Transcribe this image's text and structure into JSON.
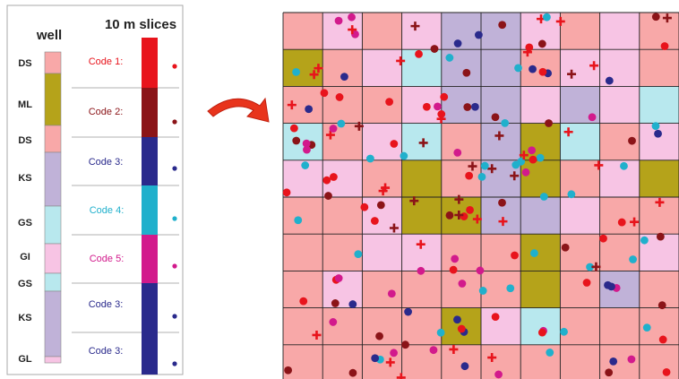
{
  "well_panel": {
    "well_title": "well",
    "slices_title": "10 m slices",
    "well_units": [
      {
        "label": "DS",
        "color": "#f8a8a8"
      },
      {
        "label": "ML",
        "color": "#b5a31a"
      },
      {
        "label": "DS",
        "color": "#f8a8a8"
      },
      {
        "label": "KS",
        "color": "#c0b2d8"
      },
      {
        "label": "GS",
        "color": "#b8e8ee"
      },
      {
        "label": "GI",
        "color": "#f7c4e4"
      },
      {
        "label": "GS",
        "color": "#b8e8ee"
      },
      {
        "label": "KS",
        "color": "#c0b2d8"
      },
      {
        "label": "GL",
        "color": "#f7c4e4"
      }
    ],
    "codes": [
      {
        "label": "Code 1:",
        "color": "#e8141c"
      },
      {
        "label": "Code 2:",
        "color": "#8b1418"
      },
      {
        "label": "Code 3:",
        "color": "#2a2a8c"
      },
      {
        "label": "Code 4:",
        "color": "#20b0cc"
      },
      {
        "label": "Code 5:",
        "color": "#d21a8c"
      },
      {
        "label": "Code 3:",
        "color": "#2a2a8c"
      },
      {
        "label": "Code 3:",
        "color": "#2a2a8c"
      }
    ]
  },
  "arrow": {
    "color": "#e8341c"
  },
  "map": {
    "cell_colors": {
      "DS": "#f8a8a8",
      "ML": "#b5a31a",
      "KS": "#c0b2d8",
      "GS": "#b8e8ee",
      "GI": "#f7c4e4"
    },
    "grid": [
      [
        "DS",
        "GI",
        "DS",
        "GI",
        "KS",
        "KS",
        "GI",
        "DS",
        "GI",
        "DS"
      ],
      [
        "ML",
        "DS",
        "GI",
        "GS",
        "KS",
        "KS",
        "DS",
        "GI",
        "GI",
        "DS"
      ],
      [
        "DS",
        "DS",
        "DS",
        "GI",
        "KS",
        "KS",
        "GI",
        "KS",
        "GI",
        "GS"
      ],
      [
        "GS",
        "DS",
        "GI",
        "GS",
        "DS",
        "KS",
        "ML",
        "GS",
        "DS",
        "GI"
      ],
      [
        "GI",
        "GI",
        "DS",
        "ML",
        "DS",
        "KS",
        "ML",
        "DS",
        "GI",
        "ML"
      ],
      [
        "DS",
        "DS",
        "GI",
        "ML",
        "ML",
        "KS",
        "KS",
        "GI",
        "DS",
        "DS"
      ],
      [
        "DS",
        "DS",
        "GI",
        "GI",
        "DS",
        "DS",
        "ML",
        "DS",
        "DS",
        "GI"
      ],
      [
        "DS",
        "GI",
        "DS",
        "DS",
        "DS",
        "DS",
        "ML",
        "DS",
        "KS",
        "DS"
      ],
      [
        "DS",
        "DS",
        "DS",
        "DS",
        "ML",
        "GI",
        "GS",
        "DS",
        "DS",
        "DS"
      ],
      [
        "DS",
        "DS",
        "DS",
        "DS",
        "DS",
        "DS",
        "DS",
        "DS",
        "DS",
        "DS"
      ]
    ],
    "plus_color": "#e8141c",
    "dark_plus_color": "#8b1418"
  }
}
